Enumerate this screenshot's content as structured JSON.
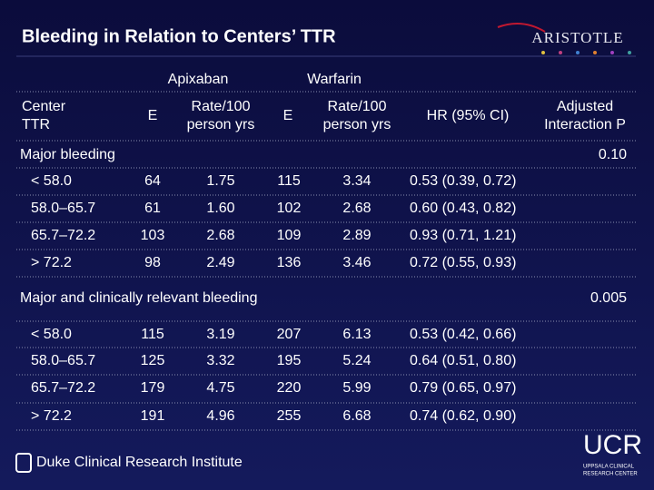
{
  "header": {
    "title": "Bleeding in Relation to Centers’ TTR",
    "logo": "ARISTOTLE"
  },
  "table": {
    "groups": [
      "Apixaban",
      "Warfarin"
    ],
    "columns": [
      [
        "Center",
        "TTR"
      ],
      [
        "E"
      ],
      [
        "Rate/100",
        "person yrs"
      ],
      [
        "E"
      ],
      [
        "Rate/100",
        "person yrs"
      ],
      [
        "HR (95% CI)"
      ],
      [
        "Adjusted",
        "Interaction P"
      ]
    ],
    "sections": [
      {
        "name": "Major bleeding",
        "p": "0.10",
        "rows": [
          [
            "< 58.0",
            "64",
            "1.75",
            "115",
            "3.34",
            "0.53 (0.39, 0.72)"
          ],
          [
            "58.0–65.7",
            "61",
            "1.60",
            "102",
            "2.68",
            "0.60 (0.43, 0.82)"
          ],
          [
            "65.7–72.2",
            "103",
            "2.68",
            "109",
            "2.89",
            "0.93 (0.71, 1.21)"
          ],
          [
            "> 72.2",
            "98",
            "2.49",
            "136",
            "3.46",
            "0.72 (0.55, 0.93)"
          ]
        ]
      },
      {
        "name": "Major and clinically relevant bleeding",
        "p": "0.005",
        "rows": [
          [
            "< 58.0",
            "115",
            "3.19",
            "207",
            "6.13",
            "0.53 (0.42, 0.66)"
          ],
          [
            "58.0–65.7",
            "125",
            "3.32",
            "195",
            "5.24",
            "0.64 (0.51, 0.80)"
          ],
          [
            "65.7–72.2",
            "179",
            "4.75",
            "220",
            "5.99",
            "0.79 (0.65, 0.97)"
          ],
          [
            "> 72.2",
            "191",
            "4.96",
            "255",
            "6.68",
            "0.74 (0.62, 0.90)"
          ]
        ]
      }
    ]
  },
  "footer": {
    "institute": "Duke Clinical Research Institute",
    "ucr": "UCR",
    "ucr_name": [
      "UPPSALA CLINICAL",
      "RESEARCH CENTER"
    ]
  }
}
